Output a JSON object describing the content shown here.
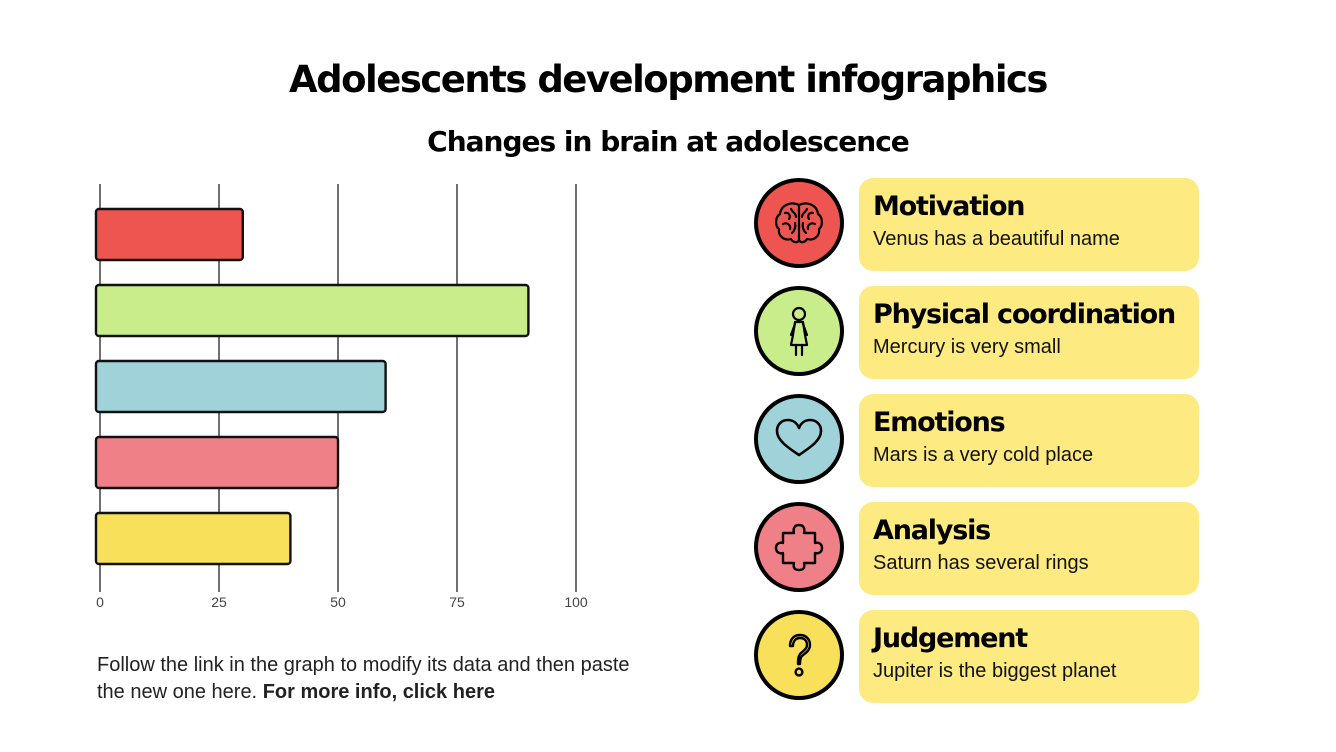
{
  "title": "Adolescents development infographics",
  "subtitle": "Changes in brain at adolescence",
  "chart_data": {
    "type": "bar",
    "orientation": "horizontal",
    "categories": [
      "Motivation",
      "Physical coordination",
      "Emotions",
      "Analysis",
      "Judgement"
    ],
    "values": [
      30,
      90,
      60,
      50,
      40
    ],
    "colors": [
      "#ee5550",
      "#c8ed8a",
      "#9fd3d9",
      "#f08088",
      "#f9e05a"
    ],
    "xlim": [
      0,
      100
    ],
    "xticks": [
      "0",
      "25",
      "50",
      "75",
      "100"
    ],
    "grid": true
  },
  "footnote": {
    "text": "Follow the link in the graph to modify its data and then paste the new one here. ",
    "link": "For more info, click here"
  },
  "items": [
    {
      "title": "Motivation",
      "desc": "Venus has a beautiful name",
      "icon": "brain-icon",
      "color": "#ee5550"
    },
    {
      "title": "Physical coordination",
      "desc": "Mercury is very small",
      "icon": "child-icon",
      "color": "#c8ed8a"
    },
    {
      "title": "Emotions",
      "desc": "Mars is a very cold place",
      "icon": "heart-icon",
      "color": "#9fd3d9"
    },
    {
      "title": "Analysis",
      "desc": "Saturn has several rings",
      "icon": "puzzle-icon",
      "color": "#f08088"
    },
    {
      "title": "Judgement",
      "desc": "Jupiter is the biggest planet",
      "icon": "question-icon",
      "color": "#f9e05a"
    }
  ]
}
